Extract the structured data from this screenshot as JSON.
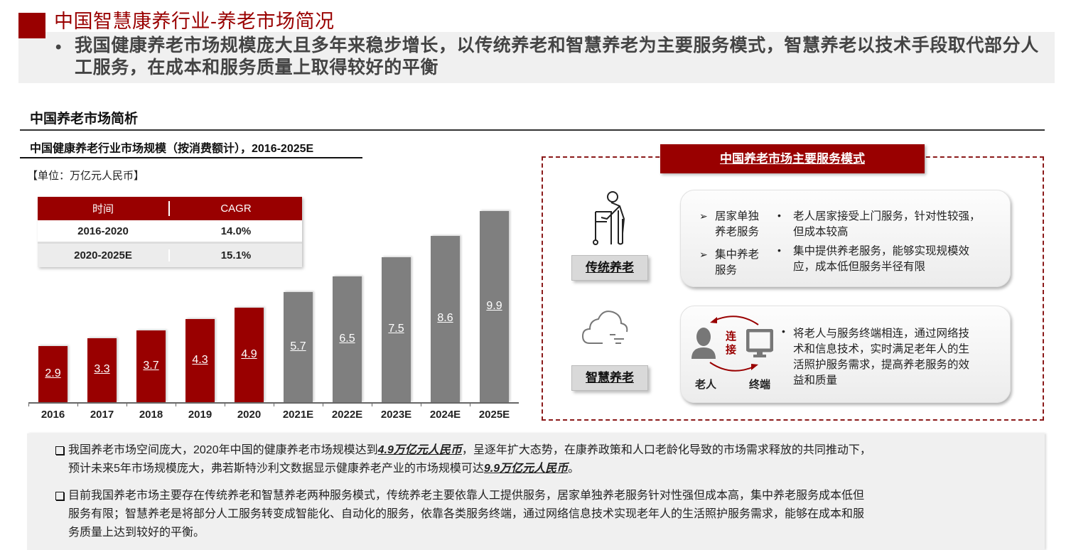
{
  "header": {
    "title": "中国智慧康养行业-养老市场简况",
    "banner_bullet": "•",
    "banner_text": "我国健康养老市场规模庞大且多年来稳步增长，以传统养老和智慧养老为主要服务模式，智慧养老以技术手段取代部分人工服务，在成本和服务质量上取得较好的平衡"
  },
  "section": {
    "title": "中国养老市场简析"
  },
  "chart_panel": {
    "title": "中国健康养老行业市场规模（按消费额计），2016-2025E",
    "unit": "【单位：万亿元人民币】",
    "cagr_table": {
      "headers": [
        "时间",
        "CAGR"
      ],
      "rows": [
        [
          "2016-2020",
          "14.0%"
        ],
        [
          "2020-2025E",
          "15.1%"
        ]
      ]
    }
  },
  "chart_data": {
    "type": "bar",
    "title": "中国健康养老行业市场规模（按消费额计），2016-2025E",
    "xlabel": "",
    "ylabel": "万亿元人民币",
    "categories": [
      "2016",
      "2017",
      "2018",
      "2019",
      "2020",
      "2021E",
      "2022E",
      "2023E",
      "2024E",
      "2025E"
    ],
    "values": [
      2.9,
      3.3,
      3.7,
      4.3,
      4.9,
      5.7,
      6.5,
      7.5,
      8.6,
      9.9
    ],
    "value_labels": [
      "2.9",
      "3.3",
      "3.7",
      "4.3",
      "4.9",
      "5.7",
      "6.5",
      "7.5",
      "8.6",
      "9.9"
    ],
    "series_type": [
      "actual",
      "actual",
      "actual",
      "actual",
      "actual",
      "estimate",
      "estimate",
      "estimate",
      "estimate",
      "estimate"
    ],
    "colors": {
      "actual": "#990000",
      "estimate": "#7f7f7f"
    },
    "ylim": [
      0,
      10
    ],
    "grid": false,
    "legend": "none",
    "cagr": [
      {
        "period": "2016-2020",
        "value": "14.0%"
      },
      {
        "period": "2020-2025E",
        "value": "15.1%"
      }
    ]
  },
  "modes": {
    "header": "中国养老市场主要服务模式",
    "traditional": {
      "label": "传统养老",
      "icon": "elderly-walker-icon",
      "items": [
        {
          "name_line1": "居家单独",
          "name_line2": "养老服务",
          "desc_line1": "老人居家接受上门服务，针对性较强，",
          "desc_line2": "但成本较高"
        },
        {
          "name_line1": "集中养老",
          "name_line2": "服务",
          "desc_line1": "集中提供养老服务，能够实现规模效",
          "desc_line2": "应，成本低但服务半径有限"
        }
      ]
    },
    "smart": {
      "label": "智慧养老",
      "icon": "cloud-connect-icon",
      "connect_line1": "连",
      "connect_line2": "接",
      "elder_label": "老人",
      "terminal_label": "终端",
      "desc_lines": [
        "将老人与服务终端相连，通过网络技",
        "术和信息技术，实时满足老年人的生",
        "活照护服务需求，提高养老服务的效",
        "益和质量"
      ]
    }
  },
  "summary": {
    "para1_a": "我国养老市场空间庞大，2020年中国的健康养老市场规模达到",
    "para1_emph1": "4.9万亿元人民币",
    "para1_b": "，呈逐年扩大态势，在康养政策和人口老龄化导致的市场需求释放的共同推动下，",
    "para1_c": "预计未来5年市场规模庞大，弗若斯特沙利文数据显示健康养老产业的市场规模可达",
    "para1_emph2": "9.9万亿元人民币",
    "para1_d": "。",
    "para2_line1": "目前我国养老市场主要存在传统养老和智慧养老两种服务模式，传统养老主要依靠人工提供服务，居家单独养老服务针对性强但成本高，集中养老服务成本低但",
    "para2_line2": "服务有限；智慧养老是将部分人工服务转变成智能化、自动化的服务，依靠各类服务终端，通过网络信息技术实现老年人的生活照护服务需求，能够在成本和服",
    "para2_line3": "务质量上达到较好的平衡。"
  }
}
